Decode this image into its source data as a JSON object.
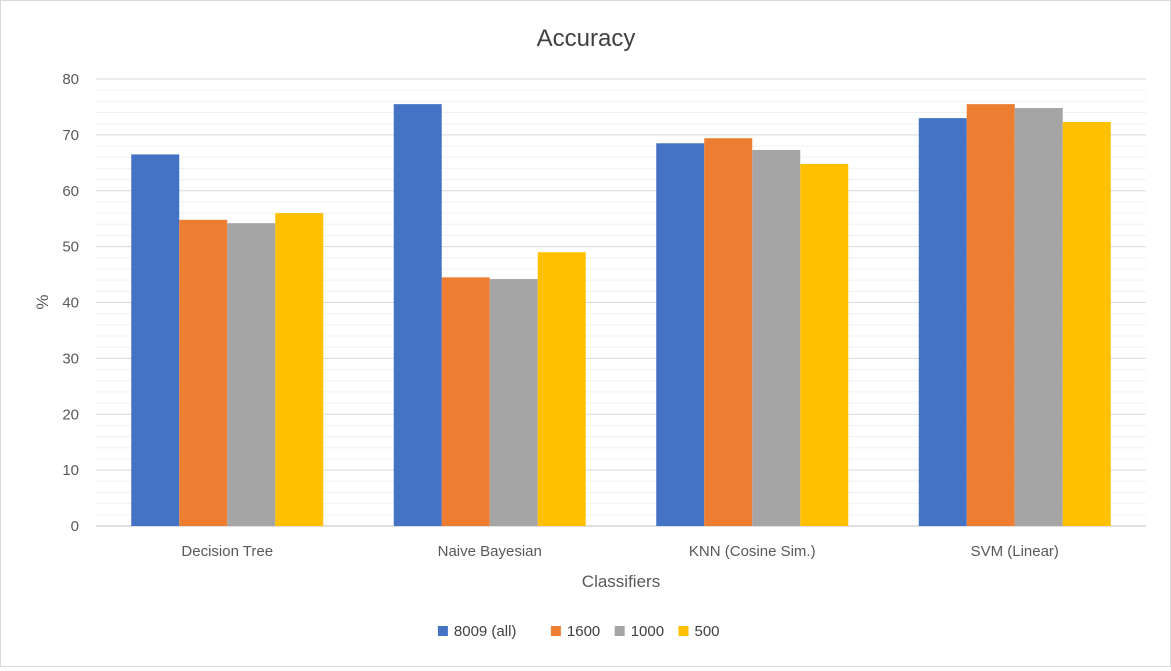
{
  "chart_data": {
    "type": "bar",
    "title": "Accuracy",
    "xlabel": "Classifiers",
    "ylabel": "%",
    "ylim": [
      0,
      80
    ],
    "yticks": [
      0,
      10,
      20,
      30,
      40,
      50,
      60,
      70,
      80
    ],
    "minor_gridlines": true,
    "grid": true,
    "legend_position": "bottom",
    "categories": [
      "Decision Tree",
      "Naive Bayesian",
      "KNN (Cosine Sim.)",
      "SVM (Linear)"
    ],
    "series": [
      {
        "name": "8009 (all)",
        "color": "#4472C4",
        "values": [
          66.5,
          75.5,
          68.5,
          73.0
        ]
      },
      {
        "name": "1600",
        "color": "#ED7D31",
        "values": [
          54.8,
          44.5,
          69.4,
          75.5
        ]
      },
      {
        "name": "1000",
        "color": "#A5A5A5",
        "values": [
          54.2,
          44.2,
          67.3,
          74.8
        ]
      },
      {
        "name": "500",
        "color": "#FFC000",
        "values": [
          56.0,
          49.0,
          64.8,
          72.3
        ]
      }
    ]
  }
}
